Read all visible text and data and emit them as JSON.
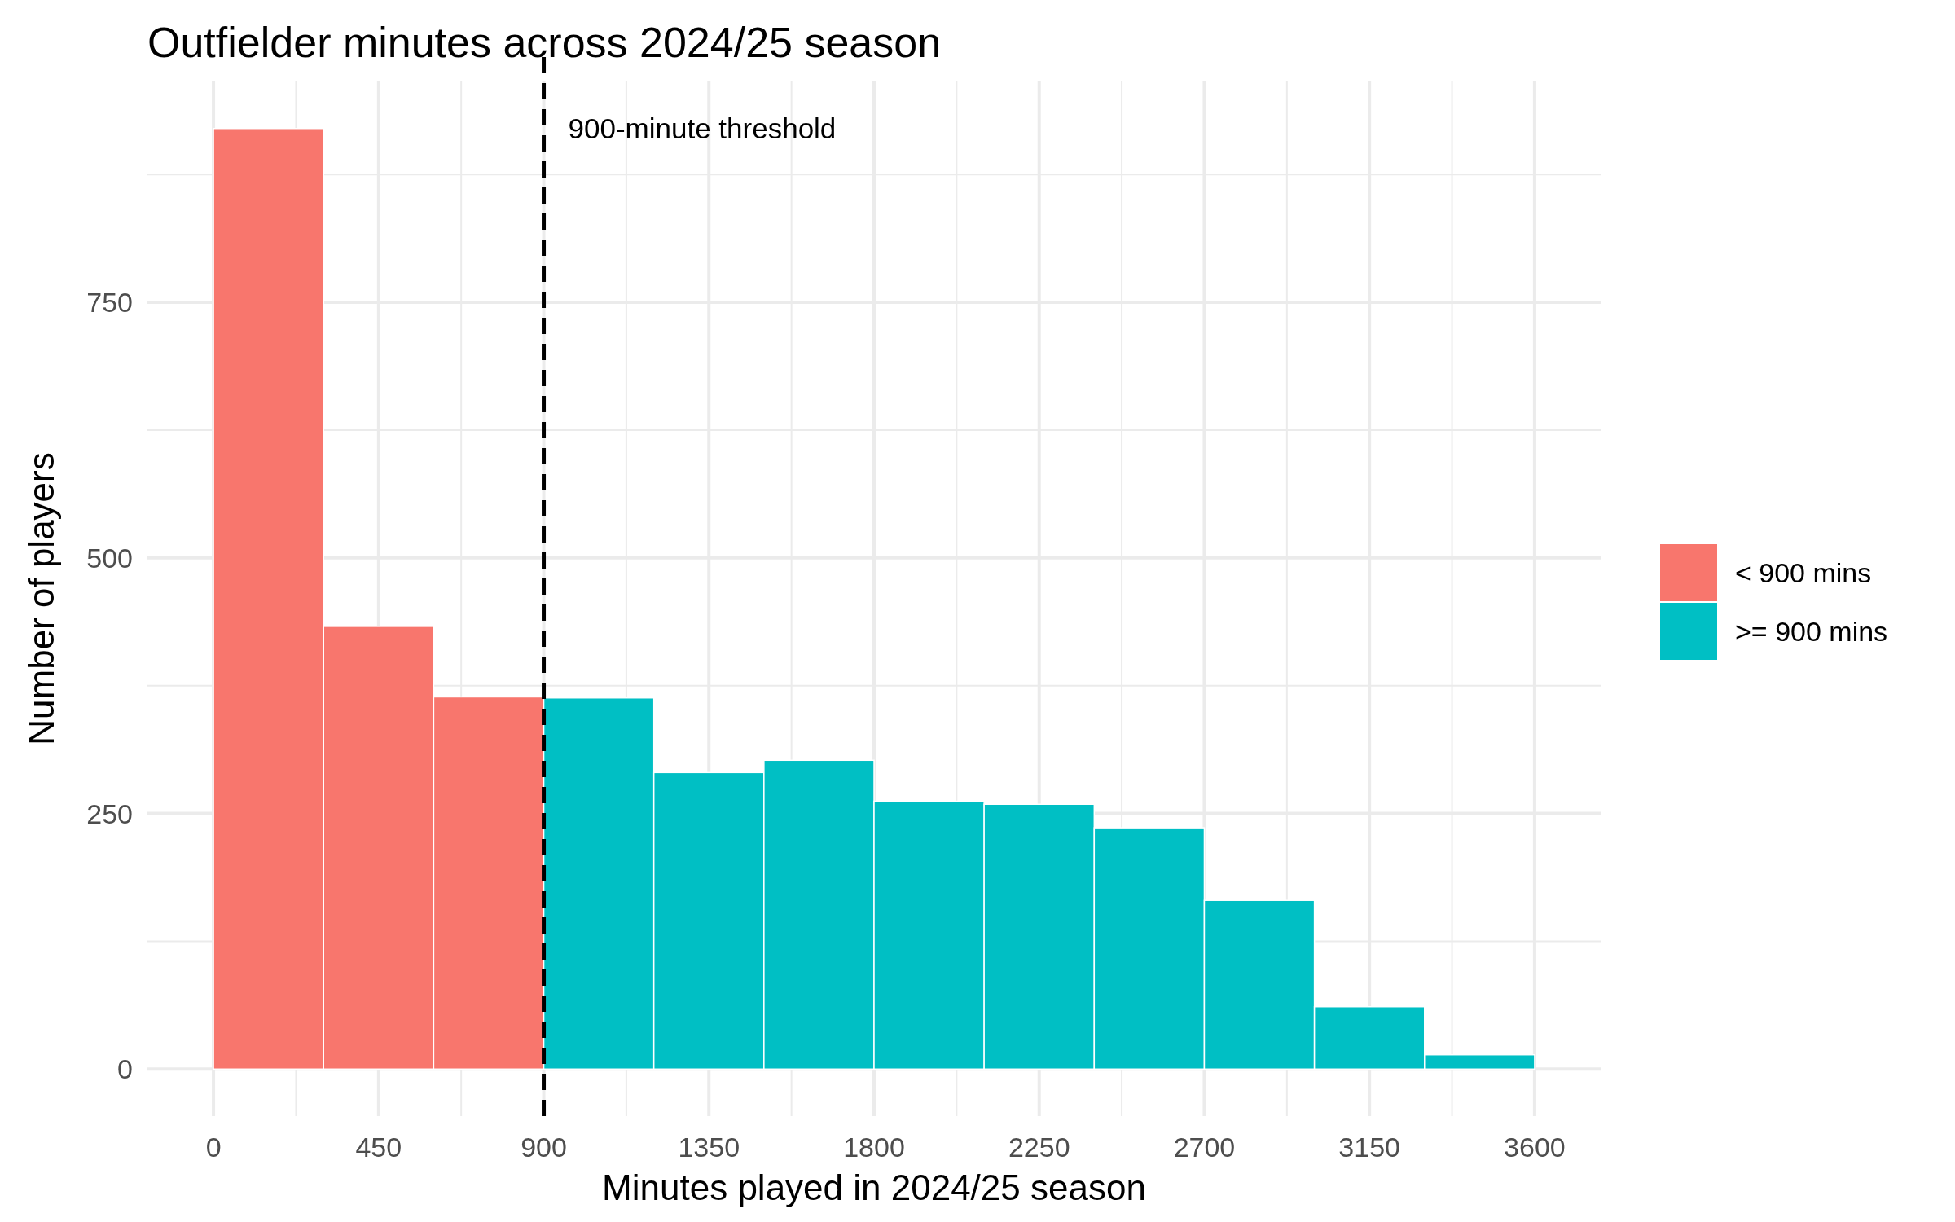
{
  "chart_data": {
    "type": "histogram",
    "title": "Outfielder minutes across 2024/25 season",
    "xlabel": "Minutes played in 2024/25 season",
    "ylabel": "Number of players",
    "bins": [
      0,
      300,
      600,
      900,
      1200,
      1500,
      1800,
      2100,
      2400,
      2700,
      3000,
      3300,
      3600
    ],
    "series": [
      {
        "name": "< 900 mins",
        "color": "#f8766d",
        "values": [
          920,
          433,
          364,
          null,
          null,
          null,
          null,
          null,
          null,
          null,
          null,
          null
        ]
      },
      {
        "name": ">= 900 mins",
        "color": "#00bfc4",
        "values": [
          null,
          null,
          null,
          363,
          290,
          302,
          262,
          259,
          236,
          165,
          61,
          14
        ]
      }
    ],
    "xlim": [
      -180,
      3780
    ],
    "ylim": [
      -46,
      966
    ],
    "xticks": [
      0,
      {
        "value": 225,
        "label": null
      },
      450,
      {
        "value": 675,
        "label": null
      },
      900,
      {
        "value": 1125,
        "label": null
      },
      1350,
      {
        "value": 1575,
        "label": null
      },
      1800,
      {
        "value": 2025,
        "label": null
      },
      2250,
      {
        "value": 2475,
        "label": null
      },
      2700,
      {
        "value": 2925,
        "label": null
      },
      3150,
      {
        "value": 3375,
        "label": null
      },
      3600
    ],
    "yticks": [
      0,
      {
        "value": 125,
        "label": null
      },
      250,
      {
        "value": 375,
        "label": null
      },
      500,
      {
        "value": 625,
        "label": null
      },
      750,
      {
        "value": 875,
        "label": null
      }
    ],
    "grid": true,
    "legend": "right",
    "ref_lines": [
      {
        "axis": "x",
        "value": 900,
        "label": "900-minute threshold",
        "color": "#000000",
        "line_style": "dashed"
      }
    ]
  }
}
